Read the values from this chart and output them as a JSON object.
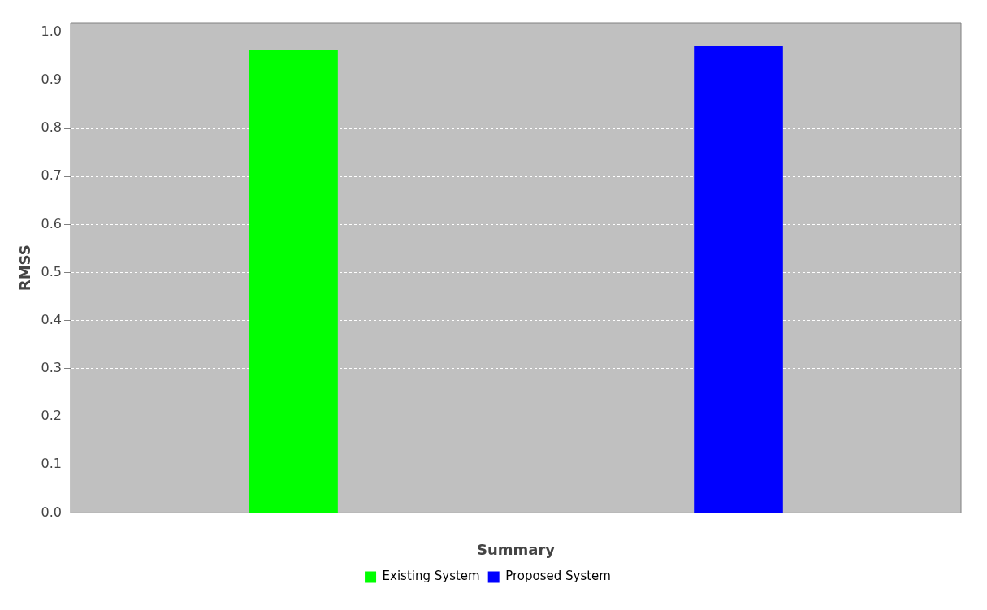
{
  "chart_data": {
    "type": "bar",
    "xlabel": "Summary",
    "ylabel": "RMSS",
    "categories": [
      null
    ],
    "series": [
      {
        "name": "Existing System",
        "color": "#00ff00",
        "values": [
          0.964
        ]
      },
      {
        "name": "Proposed System",
        "color": "#0000ff",
        "values": [
          0.971
        ]
      }
    ],
    "ylim": [
      0,
      1.02
    ],
    "yticks": [
      {
        "value": 0,
        "label": "0.0"
      },
      0.1,
      0.2,
      0.3,
      0.4,
      0.5,
      0.6,
      0.7,
      0.8,
      0.9,
      {
        "value": 1,
        "label": "1.0"
      }
    ],
    "grid": "y",
    "legend": "bottom"
  }
}
